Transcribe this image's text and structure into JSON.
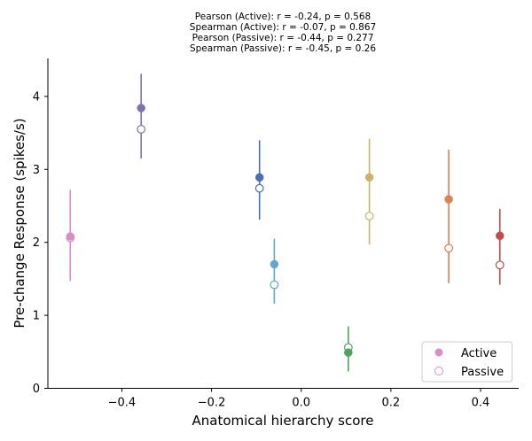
{
  "chart_data": {
    "type": "scatter",
    "title_lines": [
      "Pearson (Active): r = -0.24, p = 0.568",
      "Spearman (Active): r = -0.07, p = 0.867",
      "Pearson (Passive): r = -0.44, p = 0.277",
      "Spearman (Passive): r = -0.45, p = 0.26"
    ],
    "xlabel": "Anatomical hierarchy score",
    "ylabel": "Pre-change Response (spikes/s)",
    "xlim": [
      -0.565,
      0.485
    ],
    "ylim": [
      0,
      4.52
    ],
    "xticks": [
      -0.4,
      -0.2,
      0.0,
      0.2,
      0.4
    ],
    "xtick_labels": [
      "−0.4",
      "−0.2",
      "0.0",
      "0.2",
      "0.4"
    ],
    "yticks": [
      0,
      1,
      2,
      3,
      4
    ],
    "ytick_labels": [
      "0",
      "1",
      "2",
      "3",
      "4"
    ],
    "grid": false,
    "legend_position": "bottom-right",
    "legend": [
      {
        "label": "Active",
        "marker": "filled"
      },
      {
        "label": "Passive",
        "marker": "open"
      }
    ],
    "points": [
      {
        "x": -0.515,
        "active": 2.08,
        "passive": 2.06,
        "err_low": 1.47,
        "err_high": 2.72,
        "color": "#d88fc6"
      },
      {
        "x": -0.357,
        "active": 3.84,
        "passive": 3.55,
        "err_low": 3.15,
        "err_high": 4.31,
        "color": "#8073ac"
      },
      {
        "x": -0.093,
        "active": 2.89,
        "passive": 2.74,
        "err_low": 2.31,
        "err_high": 3.4,
        "color": "#4c6fb0"
      },
      {
        "x": -0.06,
        "active": 1.7,
        "passive": 1.42,
        "err_low": 1.16,
        "err_high": 2.05,
        "color": "#62a8cc"
      },
      {
        "x": 0.105,
        "active": 0.49,
        "passive": 0.56,
        "err_low": 0.23,
        "err_high": 0.85,
        "color": "#4fa35e"
      },
      {
        "x": 0.152,
        "active": 2.89,
        "passive": 2.36,
        "err_low": 1.97,
        "err_high": 3.42,
        "color": "#c9b46c"
      },
      {
        "x": 0.329,
        "active": 2.59,
        "passive": 1.92,
        "err_low": 1.44,
        "err_high": 3.27,
        "color": "#de8052"
      },
      {
        "x": 0.443,
        "active": 2.09,
        "passive": 1.69,
        "err_low": 1.42,
        "err_high": 2.46,
        "color": "#c44a4a"
      }
    ],
    "legend_marker_color": "#d88fc6"
  }
}
